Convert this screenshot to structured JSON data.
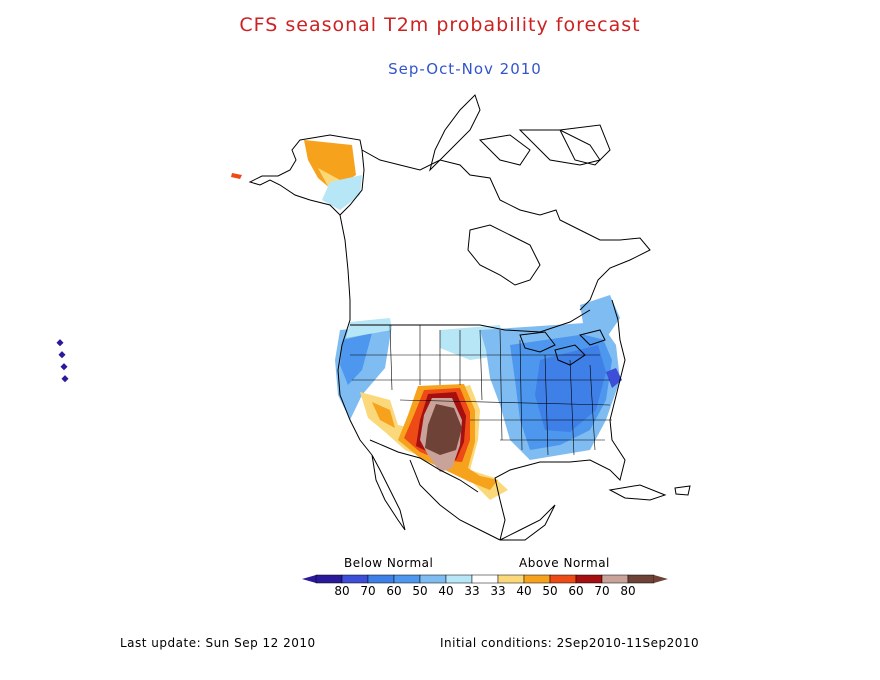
{
  "title": "CFS seasonal T2m probability forecast",
  "subtitle": "Sep-Oct-Nov 2010",
  "colors": {
    "title": "#cc2222",
    "subtitle": "#3355cc",
    "coast": "#000000"
  },
  "legend": {
    "below_label": "Below Normal",
    "above_label": "Above Normal",
    "bins": [
      {
        "label": "80",
        "color": "#2a1a9a"
      },
      {
        "label": "70",
        "color": "#3c4fd6"
      },
      {
        "label": "60",
        "color": "#3f7fe8"
      },
      {
        "label": "50",
        "color": "#4d97ee"
      },
      {
        "label": "40",
        "color": "#7fbcf2"
      },
      {
        "label": "33",
        "color": "#b7e6f6"
      },
      {
        "label": "33",
        "color": "#ffffff"
      },
      {
        "label": "40",
        "color": "#fbd97a"
      },
      {
        "label": "50",
        "color": "#f6a21d"
      },
      {
        "label": "60",
        "color": "#ee4a16"
      },
      {
        "label": "70",
        "color": "#a50f0f"
      },
      {
        "label": "80",
        "color": "#c9a39a"
      },
      {
        "label": "",
        "color": "#6e4236"
      }
    ]
  },
  "footer": {
    "last_update": "Last update: Sun Sep 12 2010",
    "initial_conditions": "Initial conditions: 2Sep2010-11Sep2010"
  }
}
